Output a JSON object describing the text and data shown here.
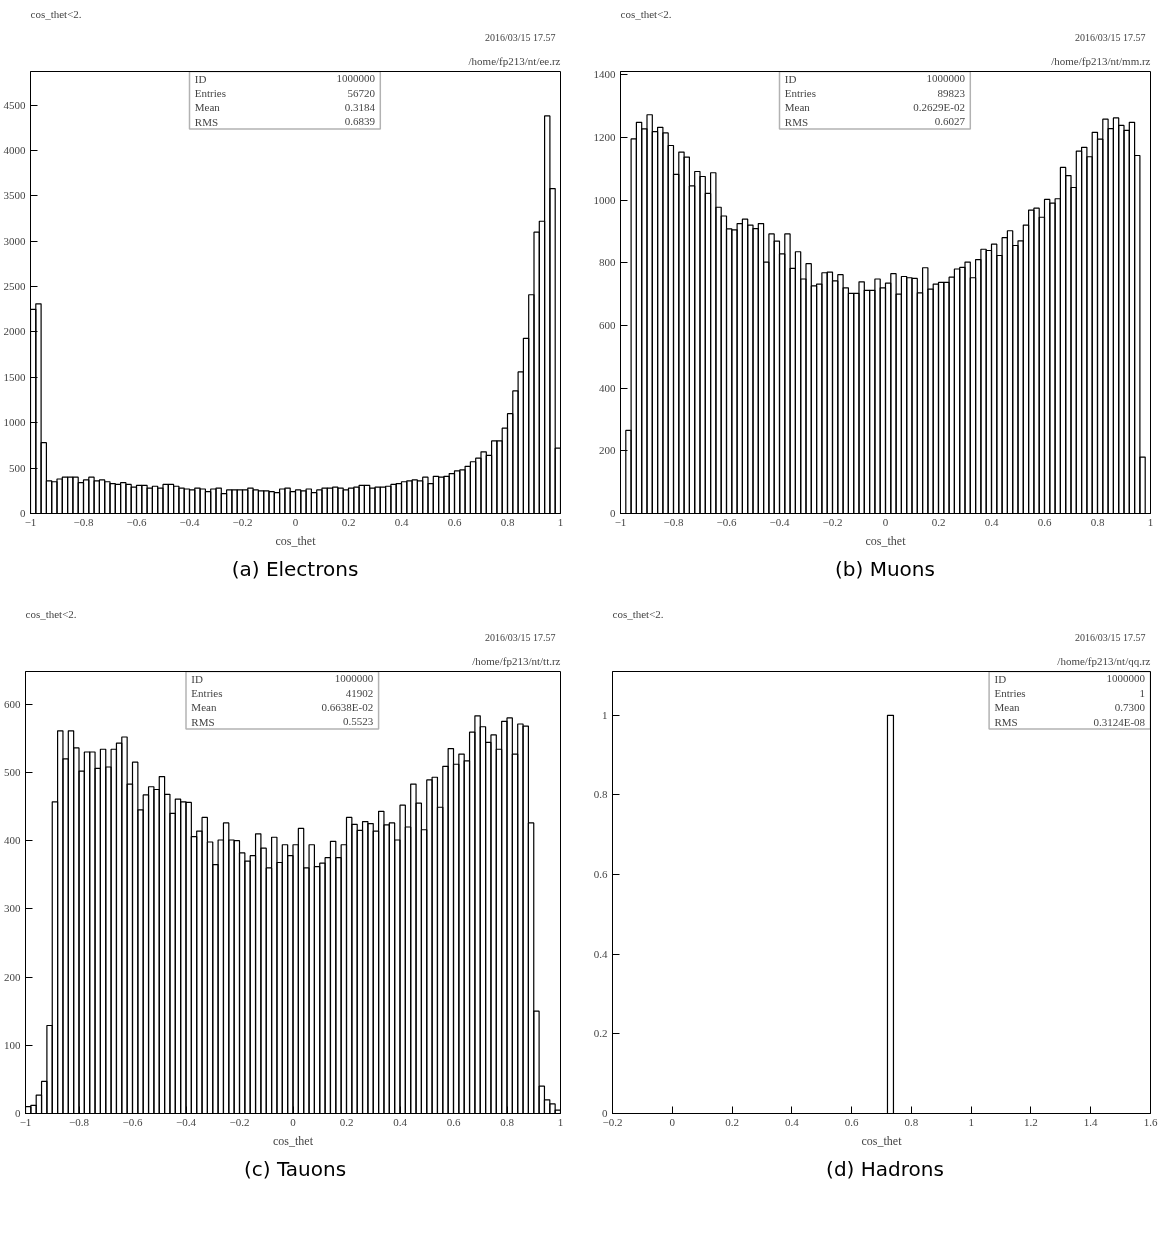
{
  "chart_data": [
    {
      "type": "histogram",
      "title": "cos_thet<2.",
      "subtitle": "/home/fp213/nt/ee.rz",
      "xlabel": "cos_thet",
      "color": "#000000",
      "annotations": [
        "2016/03/15   17.57",
        "ID",
        "1000000",
        "Entries",
        "56720",
        "Mean",
        "0.3184",
        "RMS",
        "0.6839",
        "(a) Electrons"
      ],
      "bins": [
        -1,
        -0.98,
        -0.96,
        -0.94,
        -0.92,
        -0.9,
        -0.88,
        -0.86,
        -0.84,
        -0.82,
        -0.8,
        -0.78,
        -0.76,
        -0.74,
        -0.72,
        -0.7,
        -0.68,
        -0.66,
        -0.64,
        -0.62,
        -0.6,
        -0.58,
        -0.56,
        -0.54,
        -0.52,
        -0.5,
        -0.48,
        -0.46,
        -0.44,
        -0.42,
        -0.4,
        -0.38,
        -0.36,
        -0.34,
        -0.32,
        -0.3,
        -0.28,
        -0.26,
        -0.24,
        -0.22,
        -0.2,
        -0.18,
        -0.16,
        -0.14,
        -0.12,
        -0.1,
        -0.08,
        -0.06,
        -0.04,
        -0.02,
        0,
        0.02,
        0.04,
        0.06,
        0.08,
        0.1,
        0.12,
        0.14,
        0.16,
        0.18,
        0.2,
        0.22,
        0.24,
        0.26,
        0.28,
        0.3,
        0.32,
        0.34,
        0.36,
        0.38,
        0.4,
        0.42,
        0.44,
        0.46,
        0.48,
        0.5,
        0.52,
        0.54,
        0.56,
        0.58,
        0.6,
        0.62,
        0.64,
        0.66,
        0.68,
        0.7,
        0.72,
        0.74,
        0.76,
        0.78,
        0.8,
        0.82,
        0.84,
        0.86,
        0.88,
        0.9,
        0.92,
        0.94,
        0.96,
        0.98,
        1
      ],
      "values": [
        2250,
        2310,
        780,
        360,
        350,
        380,
        400,
        400,
        400,
        340,
        370,
        400,
        360,
        370,
        350,
        330,
        320,
        340,
        320,
        290,
        310,
        310,
        280,
        300,
        280,
        320,
        320,
        300,
        280,
        270,
        260,
        280,
        270,
        240,
        270,
        280,
        220,
        260,
        260,
        260,
        260,
        280,
        260,
        250,
        250,
        240,
        230,
        270,
        280,
        240,
        260,
        250,
        270,
        230,
        260,
        280,
        280,
        290,
        280,
        260,
        280,
        290,
        310,
        310,
        280,
        290,
        290,
        300,
        320,
        330,
        350,
        360,
        370,
        360,
        400,
        330,
        410,
        400,
        410,
        440,
        470,
        480,
        520,
        570,
        610,
        680,
        640,
        800,
        800,
        940,
        1100,
        1350,
        1560,
        1930,
        2410,
        3100,
        3220,
        4380,
        3580,
        720
      ],
      "xlim": [
        -1,
        1
      ],
      "ylim": [
        0,
        4870
      ],
      "xticks": [
        -1,
        -0.8,
        -0.6,
        -0.4,
        -0.2,
        0,
        0.2,
        0.4,
        0.6,
        0.8,
        1
      ],
      "yticks": [
        0,
        500,
        1000,
        1500,
        2000,
        2500,
        3000,
        3500,
        4000,
        4500
      ]
    },
    {
      "type": "histogram",
      "title": "cos_thet<2.",
      "subtitle": "/home/fp213/nt/mm.rz",
      "xlabel": "cos_thet",
      "color": "#000000",
      "annotations": [
        "2016/03/15   17.57",
        "ID",
        "1000000",
        "Entries",
        "89823",
        "Mean",
        "0.2629E-02",
        "RMS",
        "0.6027",
        "(b) Muons"
      ],
      "bins": [
        -1,
        -0.98,
        -0.96,
        -0.94,
        -0.92,
        -0.9,
        -0.88,
        -0.86,
        -0.84,
        -0.82,
        -0.8,
        -0.78,
        -0.76,
        -0.74,
        -0.72,
        -0.7,
        -0.68,
        -0.66,
        -0.64,
        -0.62,
        -0.6,
        -0.58,
        -0.56,
        -0.54,
        -0.52,
        -0.5,
        -0.48,
        -0.46,
        -0.44,
        -0.42,
        -0.4,
        -0.38,
        -0.36,
        -0.34,
        -0.32,
        -0.3,
        -0.28,
        -0.26,
        -0.24,
        -0.22,
        -0.2,
        -0.18,
        -0.16,
        -0.14,
        -0.12,
        -0.1,
        -0.08,
        -0.06,
        -0.04,
        -0.02,
        0,
        0.02,
        0.04,
        0.06,
        0.08,
        0.1,
        0.12,
        0.14,
        0.16,
        0.18,
        0.2,
        0.22,
        0.24,
        0.26,
        0.28,
        0.3,
        0.32,
        0.34,
        0.36,
        0.38,
        0.4,
        0.42,
        0.44,
        0.46,
        0.48,
        0.5,
        0.52,
        0.54,
        0.56,
        0.58,
        0.6,
        0.62,
        0.64,
        0.66,
        0.68,
        0.7,
        0.72,
        0.74,
        0.76,
        0.78,
        0.8,
        0.82,
        0.84,
        0.86,
        0.88,
        0.9,
        0.92,
        0.94,
        0.96,
        0.98,
        1
      ],
      "values": [
        0,
        265,
        1195,
        1248,
        1227,
        1272,
        1218,
        1232,
        1214,
        1174,
        1082,
        1153,
        1137,
        1045,
        1091,
        1075,
        1021,
        1087,
        977,
        949,
        908,
        905,
        925,
        939,
        920,
        909,
        925,
        802,
        892,
        869,
        828,
        892,
        782,
        835,
        748,
        797,
        726,
        732,
        768,
        770,
        742,
        762,
        720,
        702,
        702,
        739,
        712,
        712,
        748,
        720,
        735,
        765,
        700,
        756,
        752,
        750,
        704,
        784,
        716,
        732,
        737,
        737,
        754,
        780,
        785,
        802,
        752,
        810,
        843,
        839,
        859,
        823,
        880,
        902,
        855,
        870,
        920,
        968,
        974,
        945,
        1002,
        990,
        1004,
        1104,
        1078,
        1040,
        1156,
        1168,
        1138,
        1216,
        1194,
        1258,
        1228,
        1262,
        1238,
        1222,
        1248,
        1142,
        180,
        0
      ],
      "xlim": [
        -1,
        1
      ],
      "ylim": [
        0,
        1410
      ],
      "xticks": [
        -1,
        -0.8,
        -0.6,
        -0.4,
        -0.2,
        0,
        0.2,
        0.4,
        0.6,
        0.8,
        1
      ],
      "yticks": [
        0,
        200,
        400,
        600,
        800,
        1000,
        1200,
        1400
      ]
    },
    {
      "type": "histogram",
      "title": "cos_thet<2.",
      "subtitle": "/home/fp213/nt/tt.rz",
      "xlabel": "cos_thet",
      "color": "#000000",
      "annotations": [
        "2016/03/15   17.57",
        "ID",
        "1000000",
        "Entries",
        "41902",
        "Mean",
        "0.6638E-02",
        "RMS",
        "0.5523",
        "(c) Tauons"
      ],
      "bins": [
        -1,
        -0.98,
        -0.96,
        -0.94,
        -0.92,
        -0.9,
        -0.88,
        -0.86,
        -0.84,
        -0.82,
        -0.8,
        -0.78,
        -0.76,
        -0.74,
        -0.72,
        -0.7,
        -0.68,
        -0.66,
        -0.64,
        -0.62,
        -0.6,
        -0.58,
        -0.56,
        -0.54,
        -0.52,
        -0.5,
        -0.48,
        -0.46,
        -0.44,
        -0.42,
        -0.4,
        -0.38,
        -0.36,
        -0.34,
        -0.32,
        -0.3,
        -0.28,
        -0.26,
        -0.24,
        -0.22,
        -0.2,
        -0.18,
        -0.16,
        -0.14,
        -0.12,
        -0.1,
        -0.08,
        -0.06,
        -0.04,
        -0.02,
        0,
        0.02,
        0.04,
        0.06,
        0.08,
        0.1,
        0.12,
        0.14,
        0.16,
        0.18,
        0.2,
        0.22,
        0.24,
        0.26,
        0.28,
        0.3,
        0.32,
        0.34,
        0.36,
        0.38,
        0.4,
        0.42,
        0.44,
        0.46,
        0.48,
        0.5,
        0.52,
        0.54,
        0.56,
        0.58,
        0.6,
        0.62,
        0.64,
        0.66,
        0.68,
        0.7,
        0.72,
        0.74,
        0.76,
        0.78,
        0.8,
        0.82,
        0.84,
        0.86,
        0.88,
        0.9,
        0.92,
        0.94,
        0.96,
        0.98,
        1
      ],
      "values": [
        10,
        12,
        27,
        47,
        129,
        457,
        561,
        520,
        561,
        536,
        502,
        530,
        530,
        506,
        534,
        508,
        534,
        543,
        552,
        483,
        515,
        445,
        467,
        479,
        475,
        494,
        468,
        440,
        461,
        457,
        456,
        406,
        414,
        434,
        398,
        365,
        401,
        426,
        401,
        400,
        382,
        370,
        378,
        410,
        389,
        360,
        405,
        368,
        394,
        378,
        394,
        418,
        360,
        394,
        362,
        367,
        375,
        399,
        375,
        394,
        434,
        424,
        415,
        428,
        425,
        414,
        443,
        423,
        426,
        401,
        452,
        420,
        483,
        455,
        416,
        489,
        493,
        449,
        509,
        535,
        512,
        527,
        517,
        559,
        583,
        567,
        544,
        555,
        534,
        575,
        580,
        527,
        571,
        568,
        426,
        150,
        40,
        20,
        14,
        5
      ],
      "xlim": [
        -1,
        1
      ],
      "ylim": [
        0,
        648
      ],
      "xticks": [
        -1,
        -0.8,
        -0.6,
        -0.4,
        -0.2,
        0,
        0.2,
        0.4,
        0.6,
        0.8,
        1
      ],
      "yticks": [
        0,
        100,
        200,
        300,
        400,
        500,
        600
      ]
    },
    {
      "type": "histogram",
      "title": "cos_thet<2.",
      "subtitle": "/home/fp213/nt/qq.rz",
      "xlabel": "cos_thet",
      "color": "#000000",
      "annotations": [
        "2016/03/15   17.57",
        "ID",
        "1000000",
        "Entries",
        "1",
        "Mean",
        "0.7300",
        "RMS",
        "0.3124E-08",
        "(d) Hadrons"
      ],
      "bins": [
        0.72,
        0.74
      ],
      "values": [
        1
      ],
      "xlim": [
        -0.2,
        1.6
      ],
      "ylim": [
        0,
        1.11
      ],
      "xticks": [
        -0.2,
        0,
        0.2,
        0.4,
        0.6,
        0.8,
        1,
        1.2,
        1.4,
        1.6
      ],
      "yticks": [
        0,
        0.2,
        0.4,
        0.6,
        0.8,
        1
      ]
    }
  ]
}
